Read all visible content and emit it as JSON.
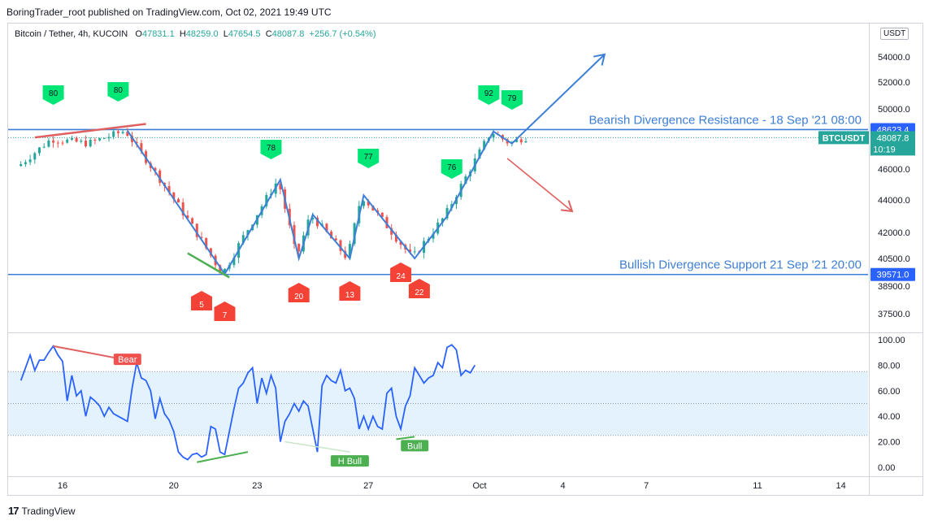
{
  "header": {
    "publisher": "BoringTrader_root published on TradingView.com, Oct 02, 2021 19:49 UTC",
    "symbol_title": "Bitcoin / Tether, 4h, KUCOIN",
    "ohlc": {
      "o_label": "O",
      "o": "47831.1",
      "h_label": "H",
      "h": "48259.0",
      "l_label": "L",
      "l": "47654.5",
      "c_label": "C",
      "c": "48087.8",
      "change": "+256.7 (+0.54%)"
    },
    "currency": "USDT"
  },
  "footer": {
    "brand": "TradingView"
  },
  "colors": {
    "up": "#26a69a",
    "down": "#ef5350",
    "line": "#2962ff",
    "trend": "#3d7fd6",
    "bear_line": "#e06060",
    "bull_line": "#4caf50",
    "rsi": "#2962ff",
    "rsi_band": "#e3f2fd",
    "level_label_bg": "#2962ff",
    "price_label_bg": "#26a69a"
  },
  "chart_data": [
    {
      "type": "candlestick",
      "title": "Bitcoin / Tether, 4h, KUCOIN",
      "x_ticks": [
        "16",
        "20",
        "23",
        "27",
        "Oct",
        "4",
        "7",
        "11",
        "14"
      ],
      "y_ticks": [
        "54000.0",
        "52000.0",
        "50000.0",
        "46000.0",
        "44000.0",
        "42000.0",
        "40500.0",
        "38900.0",
        "37500.0"
      ],
      "ylim": [
        36500,
        56000
      ],
      "levels": [
        {
          "name": "resistance",
          "label": "Bearish Divergence Resistance - 18 Sep '21 08:00",
          "value": 48623.4,
          "price_label": "48623.4"
        },
        {
          "name": "support",
          "label": "Bullish Divergence Support 21 Sep '21 20:00",
          "value": 39571.0,
          "price_label": "39571.0"
        }
      ],
      "last_price": {
        "symbol": "BTCUSDT",
        "price": "48087.8",
        "countdown": "10:19"
      },
      "zigzag": [
        {
          "date": "2021-09-18 08:00",
          "price": 48550
        },
        {
          "date": "2021-09-21 20:00",
          "price": 39600
        },
        {
          "date": "2021-09-23 20:00",
          "price": 45300
        },
        {
          "date": "2021-09-24 12:00",
          "price": 40500
        },
        {
          "date": "2021-09-25 00:00",
          "price": 43100
        },
        {
          "date": "2021-09-26 08:00",
          "price": 40500
        },
        {
          "date": "2021-09-26 20:00",
          "price": 44300
        },
        {
          "date": "2021-09-28 16:00",
          "price": 40500
        },
        {
          "date": "2021-09-29 20:00",
          "price": 43000
        },
        {
          "date": "2021-10-01 12:00",
          "price": 48500
        },
        {
          "date": "2021-10-02 04:00",
          "price": 47700
        },
        {
          "date": "2021-10-05 12:00",
          "price": 54200
        }
      ],
      "down_arrow": [
        {
          "date": "2021-10-02 00:00",
          "price": 46700
        },
        {
          "date": "2021-10-04 08:00",
          "price": 43300
        }
      ],
      "price_trendline": [
        {
          "date": "2021-09-15 00:00",
          "price": 48100
        },
        {
          "date": "2021-09-19 00:00",
          "price": 49000
        }
      ],
      "low_trendline": [
        {
          "date": "2021-09-20 12:00",
          "price": 40800
        },
        {
          "date": "2021-09-22 00:00",
          "price": 39400
        }
      ],
      "markers_up": [
        {
          "label": "80",
          "date": "2021-09-15 16:00"
        },
        {
          "label": "80",
          "date": "2021-09-18 00:00"
        },
        {
          "label": "78",
          "date": "2021-09-23 12:00"
        },
        {
          "label": "77",
          "date": "2021-09-27 00:00"
        },
        {
          "label": "76",
          "date": "2021-09-30 00:00"
        },
        {
          "label": "92",
          "date": "2021-10-01 08:00"
        },
        {
          "label": "79",
          "date": "2021-10-02 04:00"
        }
      ],
      "markers_down": [
        {
          "label": "5",
          "date": "2021-09-21 00:00"
        },
        {
          "label": "7",
          "date": "2021-09-21 20:00"
        },
        {
          "label": "20",
          "date": "2021-09-24 12:00"
        },
        {
          "label": "13",
          "date": "2021-09-26 08:00"
        },
        {
          "label": "24",
          "date": "2021-09-28 04:00"
        },
        {
          "label": "22",
          "date": "2021-09-28 20:00"
        }
      ]
    },
    {
      "type": "line",
      "series_name": "RSI",
      "y_ticks": [
        "100.00",
        "80.00",
        "60.00",
        "40.00",
        "20.00",
        "0.00"
      ],
      "ylim": [
        -5,
        107
      ],
      "band": [
        25,
        75
      ],
      "midline": 50,
      "values": [
        68,
        78,
        88,
        76,
        84,
        84,
        90,
        95,
        88,
        83,
        52,
        72,
        56,
        60,
        40,
        55,
        52,
        48,
        40,
        47,
        42,
        40,
        38,
        36,
        62,
        82,
        70,
        68,
        60,
        38,
        54,
        42,
        37,
        28,
        12,
        8,
        6,
        10,
        11,
        8,
        10,
        32,
        30,
        12,
        10,
        28,
        46,
        62,
        66,
        74,
        78,
        50,
        70,
        58,
        72,
        62,
        20,
        36,
        42,
        50,
        44,
        52,
        48,
        30,
        12,
        64,
        72,
        68,
        66,
        76,
        60,
        62,
        54,
        30,
        40,
        30,
        40,
        32,
        30,
        58,
        62,
        40,
        30,
        48,
        56,
        78,
        72,
        66,
        70,
        72,
        82,
        78,
        94,
        96,
        92,
        72,
        76,
        74,
        80
      ],
      "x_from": "2021-09-14 12:00",
      "x_step_hours": 4,
      "divergences": [
        {
          "label": "Bear",
          "kind": "bear",
          "from": {
            "date": "2021-09-15 16:00",
            "value": 95
          },
          "to": {
            "date": "2021-09-18 08:00",
            "value": 84
          }
        },
        {
          "label": "",
          "kind": "bull",
          "from": {
            "date": "2021-09-20 20:00",
            "value": 4
          },
          "to": {
            "date": "2021-09-22 16:00",
            "value": 12
          }
        },
        {
          "label": "H Bull",
          "kind": "hbull",
          "from": {
            "date": "2021-09-24 00:00",
            "value": 20
          },
          "to": {
            "date": "2021-09-26 08:00",
            "value": 12
          }
        },
        {
          "label": "Bull",
          "kind": "bull",
          "from": {
            "date": "2021-09-28 00:00",
            "value": 22
          },
          "to": {
            "date": "2021-09-28 16:00",
            "value": 24
          }
        }
      ]
    }
  ]
}
